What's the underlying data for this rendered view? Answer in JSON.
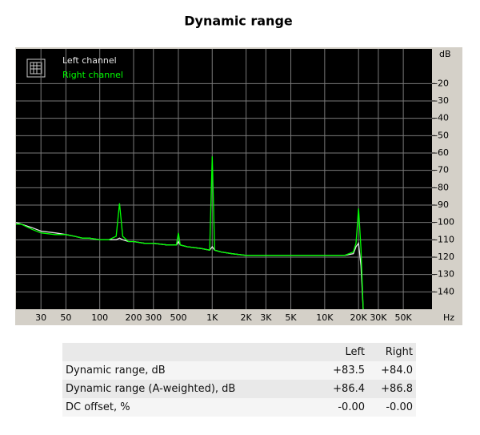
{
  "chart_data": {
    "type": "line",
    "title": "Dynamic range",
    "y_label": "dB",
    "x_label": "Hz",
    "xscale": "log",
    "grid": true,
    "legend": "upper left",
    "xlim": [
      18,
      90000
    ],
    "ylim": [
      -150,
      0
    ],
    "xticks": [
      30,
      50,
      100,
      200,
      300,
      500,
      {
        "value": 1000,
        "label": "1K"
      },
      {
        "value": 2000,
        "label": "2K"
      },
      {
        "value": 3000,
        "label": "3K"
      },
      {
        "value": 5000,
        "label": "5K"
      },
      {
        "value": 10000,
        "label": "10K"
      },
      {
        "value": 20000,
        "label": "20K"
      },
      {
        "value": 30000,
        "label": "30K"
      },
      {
        "value": 50000,
        "label": "50K"
      }
    ],
    "yticks": [
      -20,
      -30,
      -40,
      -50,
      -60,
      -70,
      -80,
      -90,
      -100,
      -110,
      -120,
      -130,
      -140
    ],
    "x": [
      18,
      20,
      25,
      30,
      40,
      50,
      60,
      70,
      80,
      100,
      120,
      140,
      150,
      160,
      180,
      200,
      250,
      300,
      400,
      480,
      500,
      520,
      600,
      800,
      950,
      1000,
      1050,
      1200,
      1500,
      2000,
      3000,
      4000,
      5000,
      7000,
      10000,
      15000,
      18000,
      19000,
      20000,
      21000,
      22000
    ],
    "series": [
      {
        "name": "Left channel",
        "color": "#e6e6e6",
        "values": [
          -100,
          -101,
          -103,
          -105,
          -106,
          -107,
          -108,
          -109,
          -109,
          -110,
          -110,
          -110,
          -109,
          -110,
          -111,
          -111,
          -112,
          -112,
          -113,
          -113,
          -111,
          -113,
          -114,
          -115,
          -116,
          -114,
          -116,
          -117,
          -118,
          -119,
          -119,
          -119,
          -119,
          -119,
          -119,
          -119,
          -118,
          -114,
          -112,
          -125,
          -150
        ]
      },
      {
        "name": "Right channel",
        "color": "#00ff00",
        "values": [
          -101,
          -101,
          -104,
          -106,
          -107,
          -107,
          -108,
          -109,
          -109,
          -110,
          -110,
          -108,
          -89,
          -108,
          -111,
          -111,
          -112,
          -112,
          -113,
          -113,
          -106,
          -113,
          -114,
          -115,
          -116,
          -62,
          -116,
          -117,
          -118,
          -119,
          -119,
          -119,
          -119,
          -119,
          -119,
          -119,
          -117,
          -112,
          -92,
          -115,
          -150
        ]
      }
    ]
  },
  "table": {
    "header": [
      "Left",
      "Right"
    ],
    "rows": [
      [
        "Dynamic range, dB",
        "+83.5",
        "+84.0"
      ],
      [
        "Dynamic range (A-weighted), dB",
        "+86.4",
        "+86.8"
      ],
      [
        "DC offset, %",
        "-0.00",
        "-0.00"
      ]
    ]
  }
}
